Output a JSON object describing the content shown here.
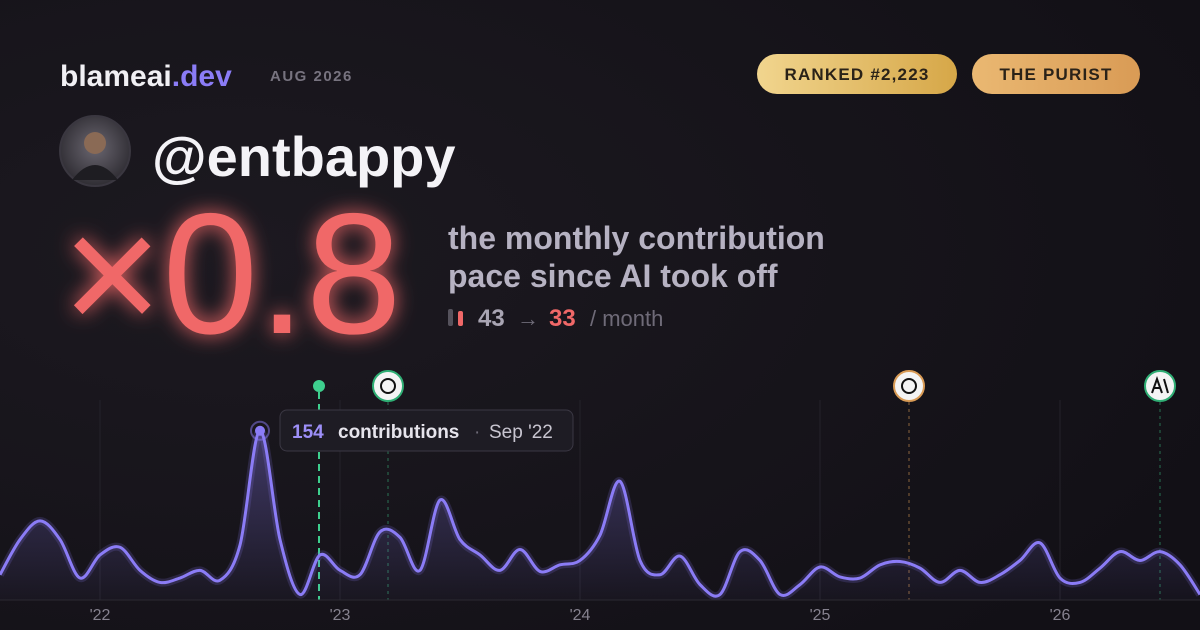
{
  "header": {
    "brand": "blameai",
    "brand_tld": ".dev",
    "date": "AUG 2026",
    "badges": [
      "RANKED #2,223",
      "THE PURIST"
    ],
    "handle": "@entbappy"
  },
  "summary": {
    "multiplier": "×0.8",
    "description": [
      "the monthly contribution",
      "pace since AI took off"
    ],
    "before": "43",
    "arrow": "→",
    "after": "33",
    "unit": "/ month"
  },
  "chart_data": {
    "type": "line",
    "color": "#8b7cf6",
    "categories": [
      null,
      null,
      null,
      null,
      null,
      "'22",
      null,
      null,
      null,
      null,
      null,
      null,
      null,
      null,
      null,
      null,
      null,
      "'23",
      null,
      null,
      null,
      null,
      null,
      null,
      null,
      null,
      null,
      null,
      null,
      "'24",
      null,
      null,
      null,
      null,
      null,
      null,
      null,
      null,
      null,
      null,
      null,
      "'25",
      null,
      null,
      null,
      null,
      null,
      null,
      null,
      null,
      null,
      null,
      null,
      "'26",
      null,
      null,
      null,
      null,
      null,
      null,
      null
    ],
    "values": [
      23,
      55,
      72,
      55,
      20,
      41,
      48,
      27,
      16,
      20,
      27,
      18,
      50,
      154,
      55,
      5,
      41,
      27,
      23,
      62,
      57,
      27,
      91,
      55,
      41,
      27,
      46,
      26,
      32,
      36,
      59,
      108,
      36,
      23,
      40,
      14,
      5,
      44,
      36,
      5,
      14,
      30,
      21,
      20,
      32,
      35,
      29,
      16,
      27,
      16,
      23,
      36,
      52,
      20,
      16,
      29,
      44,
      36,
      44,
      32,
      5
    ],
    "ylim": [
      0,
      182
    ],
    "grid": true,
    "tooltip": {
      "index": 13,
      "value": 154,
      "label": "contributions",
      "separator": "·",
      "date": "Sep '22"
    }
  }
}
